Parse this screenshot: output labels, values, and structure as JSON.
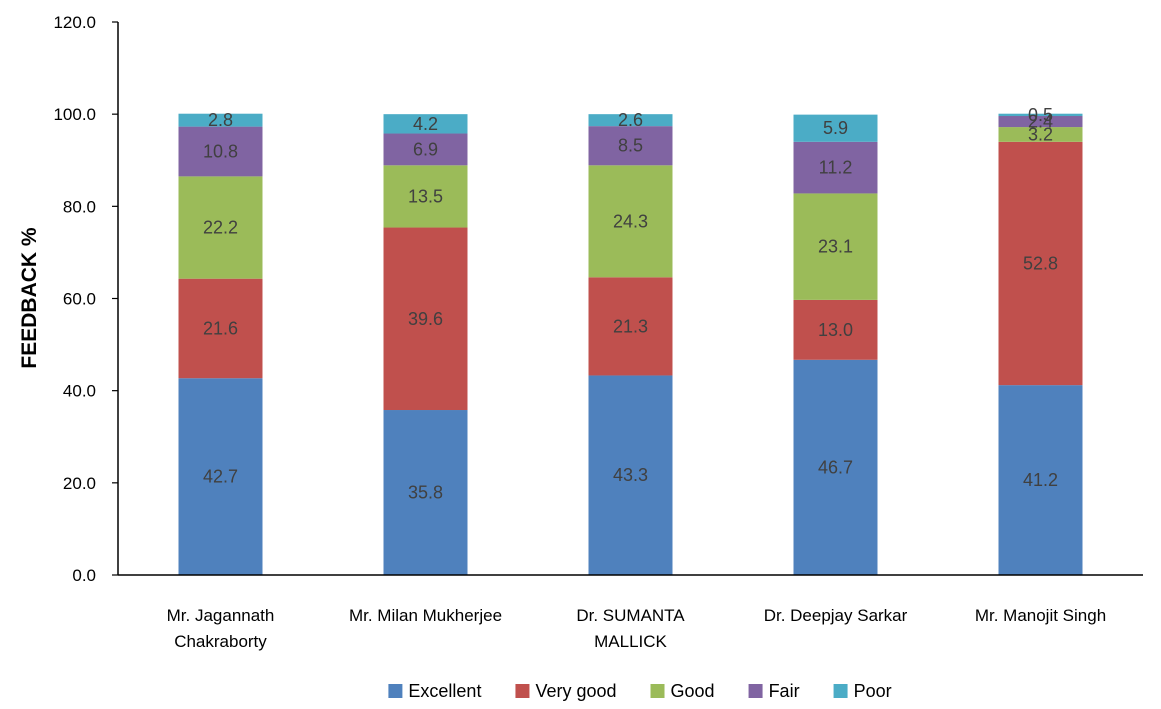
{
  "chart_data": {
    "type": "bar",
    "stacked": true,
    "title": "",
    "xlabel": "",
    "ylabel": "FEEDBACK %",
    "ylim": [
      0,
      120
    ],
    "yticks": [
      "0.0",
      "20.0",
      "40.0",
      "60.0",
      "80.0",
      "100.0",
      "120.0"
    ],
    "grid": false,
    "legend_position": "bottom",
    "categories": [
      [
        "Mr. Jagannath",
        "Chakraborty"
      ],
      [
        "Mr. Milan Mukherjee"
      ],
      [
        "Dr. SUMANTA",
        "MALLICK"
      ],
      [
        "Dr. Deepjay Sarkar"
      ],
      [
        "Mr. Manojit Singh"
      ]
    ],
    "series": [
      {
        "name": "Excellent",
        "color": "#4F81BD",
        "values": [
          42.7,
          35.8,
          43.3,
          46.7,
          41.2
        ],
        "labels": [
          "42.7",
          "35.8",
          "43.3",
          "46.7",
          "41.2"
        ]
      },
      {
        "name": "Very good",
        "color": "#C0504D",
        "values": [
          21.6,
          39.6,
          21.3,
          13.0,
          52.8
        ],
        "labels": [
          "21.6",
          "39.6",
          "21.3",
          "13.0",
          "52.8"
        ]
      },
      {
        "name": "Good",
        "color": "#9BBB59",
        "values": [
          22.2,
          13.5,
          24.3,
          23.1,
          3.2
        ],
        "labels": [
          "22.2",
          "13.5",
          "24.3",
          "23.1",
          "3.2"
        ]
      },
      {
        "name": "Fair",
        "color": "#8064A2",
        "values": [
          10.8,
          6.9,
          8.5,
          11.2,
          2.4
        ],
        "labels": [
          "10.8",
          "6.9",
          "8.5",
          "11.2",
          "2.4"
        ]
      },
      {
        "name": "Poor",
        "color": "#4BACC6",
        "values": [
          2.8,
          4.2,
          2.6,
          5.9,
          0.5
        ],
        "labels": [
          "2.8",
          "4.2",
          "2.6",
          "5.9",
          "0.5"
        ]
      }
    ]
  }
}
